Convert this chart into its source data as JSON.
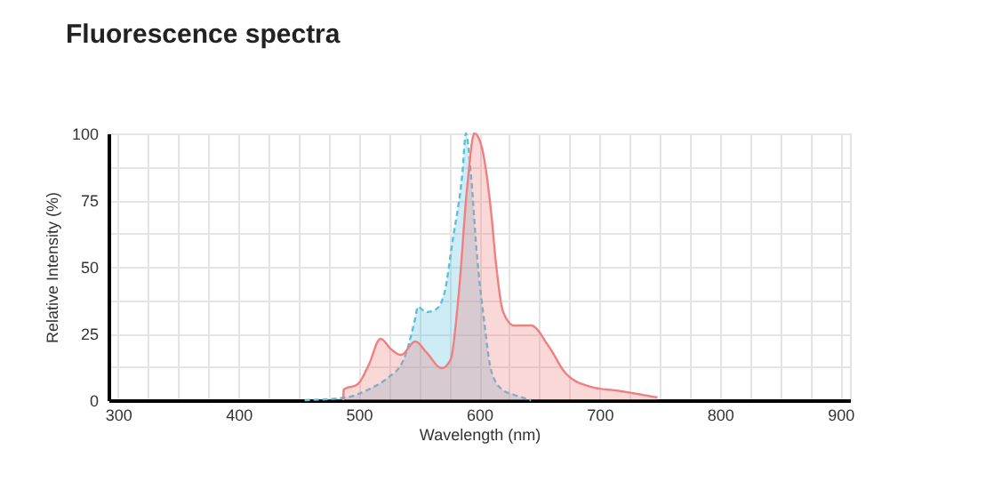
{
  "chart_data": {
    "type": "area",
    "title": "Fluorescence spectra",
    "xlabel": "Wavelength (nm)",
    "ylabel": "Relative Intensity (%)",
    "xlim": [
      292,
      908
    ],
    "ylim": [
      0,
      100
    ],
    "xticks": [
      300,
      {
        "value": 325,
        "label": null
      },
      {
        "value": 350,
        "label": null
      },
      {
        "value": 375,
        "label": null
      },
      400,
      {
        "value": 425,
        "label": null
      },
      {
        "value": 450,
        "label": null
      },
      {
        "value": 475,
        "label": null
      },
      500,
      {
        "value": 525,
        "label": null
      },
      {
        "value": 550,
        "label": null
      },
      {
        "value": 575,
        "label": null
      },
      600,
      {
        "value": 625,
        "label": null
      },
      {
        "value": 650,
        "label": null
      },
      {
        "value": 675,
        "label": null
      },
      700,
      {
        "value": 725,
        "label": null
      },
      {
        "value": 750,
        "label": null
      },
      {
        "value": 775,
        "label": null
      },
      800,
      {
        "value": 825,
        "label": null
      },
      {
        "value": 850,
        "label": null
      },
      {
        "value": 875,
        "label": null
      },
      900
    ],
    "yticks": [
      0,
      {
        "value": 12.5,
        "label": null
      },
      25,
      {
        "value": 37.5,
        "label": null
      },
      50,
      {
        "value": 62.5,
        "label": null
      },
      75,
      {
        "value": 87.5,
        "label": null
      },
      100
    ],
    "grid": true,
    "series": [
      {
        "color": "#5bc0de",
        "line_style": "dashed",
        "x": [
          455,
          489,
          508,
          523,
          537,
          547,
          549,
          556,
          564,
          571,
          578,
          586,
          589,
          593,
          598,
          604,
          610,
          619,
          629,
          643
        ],
        "values": [
          0,
          1,
          4,
          8,
          15,
          31,
          35,
          33,
          34,
          40,
          60,
          85,
          100,
          85,
          55,
          30,
          11,
          4,
          2,
          0
        ]
      },
      {
        "color": "#f07f7f",
        "line_style": "solid",
        "x": [
          487,
          487.5,
          499,
          508,
          518,
          527,
          535,
          547,
          556,
          569,
          576,
          583,
          590,
          596,
          602,
          610,
          614,
          620,
          629,
          643,
          658,
          672,
          693,
          716,
          748
        ],
        "values": [
          0,
          4,
          6,
          13,
          23,
          19,
          17,
          22,
          18,
          12,
          15,
          40,
          80,
          100,
          95,
          70,
          51,
          33,
          28,
          28,
          20,
          10,
          5,
          3.5,
          1
        ]
      }
    ]
  }
}
